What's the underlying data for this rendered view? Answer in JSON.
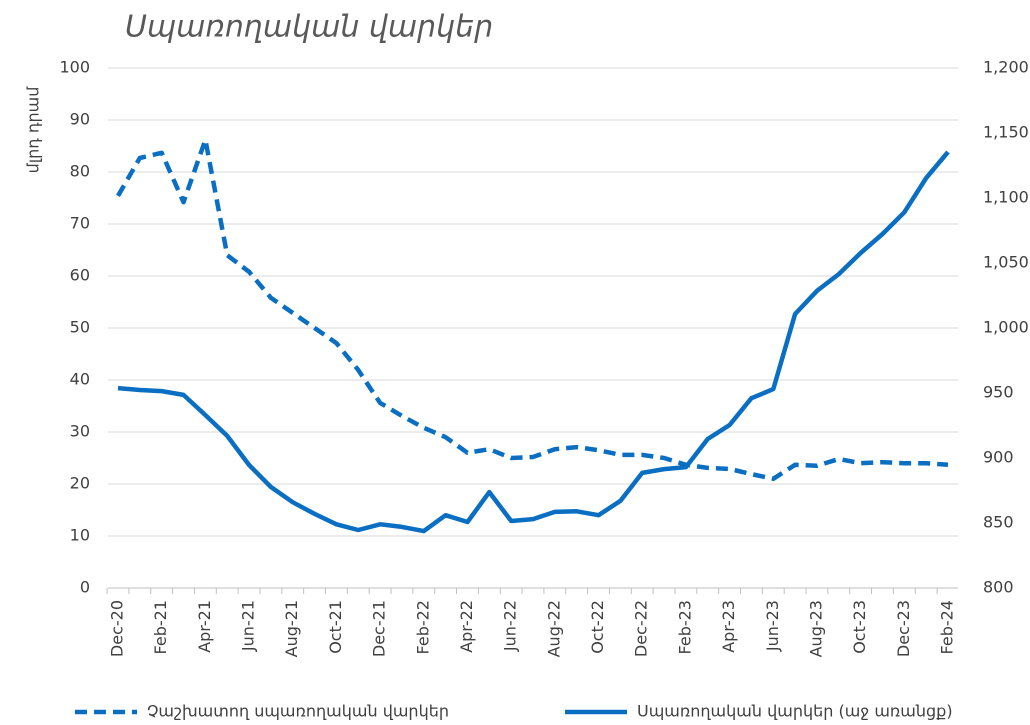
{
  "chart_data": {
    "type": "line",
    "title": "Սպառողական վարկեր",
    "y_label": "մլրդ դրամ",
    "categories": [
      "Dec-20",
      null,
      "Feb-21",
      null,
      "Apr-21",
      null,
      "Jun-21",
      null,
      "Aug-21",
      null,
      "Oct-21",
      null,
      "Dec-21",
      null,
      "Feb-22",
      null,
      "Apr-22",
      null,
      "Jun-22",
      null,
      "Aug-22",
      null,
      "Oct-22",
      null,
      "Dec-22",
      null,
      "Feb-23",
      null,
      "Apr-23",
      null,
      "Jun-23",
      null,
      "Aug-23",
      null,
      "Oct-23",
      null,
      "Dec-23",
      null,
      "Feb-24"
    ],
    "series": [
      {
        "name": "Չաշխատող սպառողական վարկեր",
        "color": "#0a6fc2",
        "dash": true,
        "axis": "y",
        "values": [
          75.4,
          82.7,
          83.7,
          74.2,
          86.2,
          64,
          60.8,
          55.8,
          52.9,
          50,
          47.1,
          41.9,
          35.6,
          33.1,
          30.8,
          29,
          26,
          26.7,
          25,
          25.2,
          26.7,
          27.1,
          26.5,
          25.6,
          25.6,
          25,
          23.7,
          23.1,
          22.9,
          21.9,
          21,
          23.7,
          23.5,
          24.8,
          24,
          24.2,
          24,
          24,
          23.7
        ]
      },
      {
        "name": "Սպառողական վարկեր (աջ առանցք)",
        "color": "#0a6fc2",
        "dash": false,
        "axis": "y2",
        "values": [
          953.8,
          952.3,
          951.5,
          948.5,
          933,
          917,
          894.6,
          877.7,
          866,
          857,
          849,
          844.6,
          849,
          847,
          843.8,
          856,
          850.8,
          873.8,
          851.5,
          853,
          858.5,
          859,
          856,
          867,
          888.5,
          891.5,
          893,
          914.6,
          925.4,
          946,
          953,
          1010.8,
          1028.5,
          1041.5,
          1057.7,
          1072.3,
          1089,
          1115.4,
          1135.4
        ]
      }
    ],
    "ylim": [
      0,
      100
    ],
    "yticks": [
      0,
      10,
      20,
      30,
      40,
      50,
      60,
      70,
      80,
      90,
      100
    ],
    "y2lim": [
      800,
      1200
    ],
    "y2ticks": [
      800,
      850,
      900,
      950,
      {
        "value": 1000,
        "label": "1,000"
      },
      {
        "value": 1050,
        "label": "1,050"
      },
      {
        "value": 1100,
        "label": "1,100"
      },
      {
        "value": 1150,
        "label": "1,150"
      },
      {
        "value": 1200,
        "label": "1,200"
      }
    ],
    "grid": true,
    "legend": "bottom"
  }
}
